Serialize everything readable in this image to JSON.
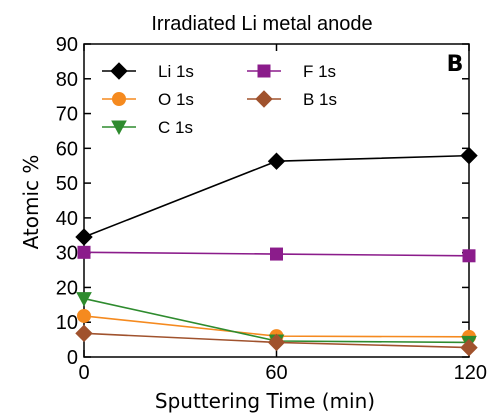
{
  "chart_data": {
    "type": "line",
    "title": "Irradiated Li metal anode",
    "panel_label": "B",
    "xlabel": "Sputtering Time (min)",
    "ylabel": "Atomic %",
    "x": [
      0,
      60,
      120
    ],
    "xlim": [
      0,
      120
    ],
    "ylim": [
      0,
      90
    ],
    "xticks": [
      0,
      60,
      120
    ],
    "yticks": [
      0,
      10,
      20,
      30,
      40,
      50,
      60,
      70,
      80,
      90
    ],
    "grid": false,
    "legend_position": "top-left",
    "series": [
      {
        "name": "Li 1s",
        "values": [
          34.5,
          56.3,
          57.9
        ],
        "color": "#000000",
        "marker": "diamond"
      },
      {
        "name": "O 1s",
        "values": [
          11.8,
          6.0,
          5.8
        ],
        "color": "#f58a1f",
        "marker": "circle"
      },
      {
        "name": "C 1s",
        "values": [
          16.8,
          4.6,
          4.2
        ],
        "color": "#2e8b2e",
        "marker": "triangle-down"
      },
      {
        "name": "F 1s",
        "values": [
          30.1,
          29.6,
          29.1
        ],
        "color": "#8b1c8b",
        "marker": "square"
      },
      {
        "name": "B 1s",
        "values": [
          6.8,
          4.2,
          2.7
        ],
        "color": "#a0522d",
        "marker": "diamond"
      }
    ]
  }
}
